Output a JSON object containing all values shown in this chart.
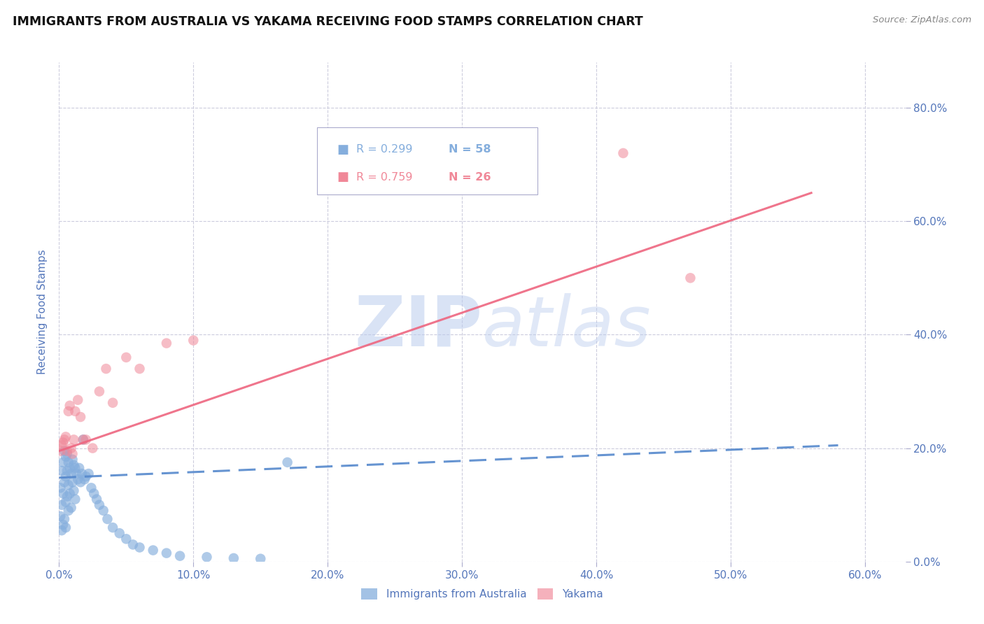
{
  "title": "IMMIGRANTS FROM AUSTRALIA VS YAKAMA RECEIVING FOOD STAMPS CORRELATION CHART",
  "source": "Source: ZipAtlas.com",
  "ylabel": "Receiving Food Stamps",
  "xlim": [
    0.0,
    0.63
  ],
  "ylim": [
    0.0,
    0.88
  ],
  "xticks": [
    0.0,
    0.1,
    0.2,
    0.3,
    0.4,
    0.5,
    0.6
  ],
  "yticks": [
    0.0,
    0.2,
    0.4,
    0.6,
    0.8
  ],
  "legend_r1": "R = 0.299",
  "legend_n1": "N = 58",
  "legend_r2": "R = 0.759",
  "legend_n2": "N = 26",
  "legend_label1": "Immigrants from Australia",
  "legend_label2": "Yakama",
  "blue_color": "#85AEDD",
  "pink_color": "#F08898",
  "blue_line_color": "#5588CC",
  "pink_line_color": "#EE6680",
  "watermark_color": "#BBCCEE",
  "background_color": "#FFFFFF",
  "grid_color": "#CCCCDD",
  "axis_label_color": "#5577BB",
  "title_color": "#111111",
  "blue_scatter_x": [
    0.001,
    0.001,
    0.002,
    0.002,
    0.002,
    0.003,
    0.003,
    0.003,
    0.004,
    0.004,
    0.004,
    0.005,
    0.005,
    0.005,
    0.005,
    0.006,
    0.006,
    0.006,
    0.007,
    0.007,
    0.007,
    0.008,
    0.008,
    0.009,
    0.009,
    0.01,
    0.01,
    0.011,
    0.011,
    0.012,
    0.012,
    0.013,
    0.014,
    0.015,
    0.016,
    0.017,
    0.018,
    0.019,
    0.02,
    0.022,
    0.024,
    0.026,
    0.028,
    0.03,
    0.033,
    0.036,
    0.04,
    0.045,
    0.05,
    0.055,
    0.06,
    0.07,
    0.08,
    0.09,
    0.11,
    0.13,
    0.15,
    0.17
  ],
  "blue_scatter_y": [
    0.13,
    0.08,
    0.16,
    0.1,
    0.055,
    0.175,
    0.12,
    0.065,
    0.195,
    0.14,
    0.075,
    0.185,
    0.15,
    0.105,
    0.06,
    0.19,
    0.16,
    0.115,
    0.175,
    0.135,
    0.09,
    0.165,
    0.12,
    0.155,
    0.095,
    0.18,
    0.14,
    0.17,
    0.125,
    0.165,
    0.11,
    0.155,
    0.145,
    0.165,
    0.14,
    0.155,
    0.215,
    0.145,
    0.15,
    0.155,
    0.13,
    0.12,
    0.11,
    0.1,
    0.09,
    0.075,
    0.06,
    0.05,
    0.04,
    0.03,
    0.025,
    0.02,
    0.015,
    0.01,
    0.008,
    0.006,
    0.005,
    0.175
  ],
  "pink_scatter_x": [
    0.001,
    0.002,
    0.003,
    0.004,
    0.005,
    0.006,
    0.007,
    0.008,
    0.009,
    0.01,
    0.011,
    0.012,
    0.014,
    0.016,
    0.018,
    0.02,
    0.025,
    0.03,
    0.035,
    0.04,
    0.05,
    0.06,
    0.08,
    0.1,
    0.42,
    0.47
  ],
  "pink_scatter_y": [
    0.195,
    0.205,
    0.21,
    0.215,
    0.22,
    0.195,
    0.265,
    0.275,
    0.2,
    0.19,
    0.215,
    0.265,
    0.285,
    0.255,
    0.215,
    0.215,
    0.2,
    0.3,
    0.34,
    0.28,
    0.36,
    0.34,
    0.385,
    0.39,
    0.72,
    0.5
  ],
  "blue_line_x": [
    0.0,
    0.58
  ],
  "blue_line_y": [
    0.148,
    0.205
  ],
  "pink_line_x": [
    0.0,
    0.56
  ],
  "pink_line_y": [
    0.195,
    0.65
  ]
}
